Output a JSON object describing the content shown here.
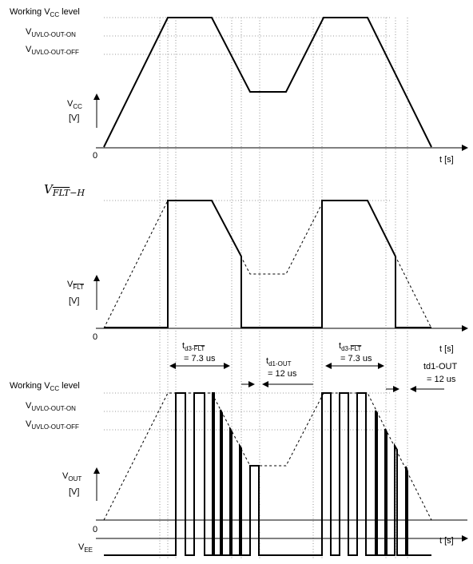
{
  "panel_top": {
    "working_vcc": {
      "pre": "Working V",
      "sub": "CC",
      "post": " level"
    },
    "vuvlo_on": {
      "pre": "V",
      "sub": "UVLO-OUT-ON"
    },
    "vuvlo_off": {
      "pre": "V",
      "sub": "UVLO-OUT-OFF"
    },
    "ylabel": {
      "pre": "V",
      "sub": "CC",
      "unit": "[V]"
    },
    "origin": "0",
    "xlabel": "t [s]"
  },
  "panel_mid": {
    "vflt_h": {
      "main": "V",
      "sub": "FLT",
      "suffix": "−H"
    },
    "ylabel": {
      "pre": "V",
      "sub": "FLT",
      "unit": "[V]"
    },
    "origin": "0",
    "xlabel": "t [s]"
  },
  "timing": {
    "td3_1": {
      "pre": "t",
      "sub": "d3-",
      "sub_over": "FLT",
      "value": "= 7.3 us"
    },
    "td1_1": {
      "pre": "t",
      "sub": "d1-OUT",
      "value": "= 12 us"
    },
    "td3_2": {
      "pre": "t",
      "sub": "d3-",
      "sub_over": "FLT",
      "value": "= 7.3 us"
    },
    "td1_2": {
      "text": "td1-OUT",
      "value": "= 12 us"
    }
  },
  "panel_bot": {
    "working_vcc": {
      "pre": "Working V",
      "sub": "CC",
      "post": " level"
    },
    "vuvlo_on": {
      "pre": "V",
      "sub": "UVLO-OUT-ON"
    },
    "vuvlo_off": {
      "pre": "V",
      "sub": "UVLO-OUT-OFF"
    },
    "ylabel": {
      "pre": "V",
      "sub": "OUT",
      "unit": "[V]"
    },
    "origin": "0",
    "vee": {
      "pre": "V",
      "sub": "EE"
    },
    "xlabel": "t [s]"
  }
}
